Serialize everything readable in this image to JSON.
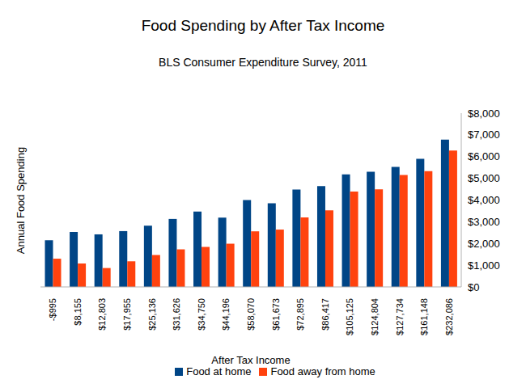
{
  "chart_data": {
    "type": "bar",
    "title": "Food Spending by After Tax Income",
    "subtitle": "BLS Consumer Expenditure Survey, 2011",
    "x_label": "After Tax Income",
    "y_label": "Annual Food Spending",
    "categories": [
      "-$995",
      "$8,155",
      "$12,803",
      "$17,955",
      "$25,136",
      "$31,626",
      "$34,750",
      "$44,196",
      "$58,070",
      "$61,673",
      "$72,895",
      "$86,417",
      "$105,125",
      "$124,804",
      "$127,734",
      "$161,148",
      "$232,086"
    ],
    "series": [
      {
        "name": "Food at home",
        "color": "#004586",
        "values": [
          2150,
          2530,
          2420,
          2570,
          2820,
          3130,
          3470,
          3190,
          4000,
          3850,
          4480,
          4640,
          5180,
          5300,
          5530,
          5900,
          6780
        ]
      },
      {
        "name": "Food away from home",
        "color": "#ff420e",
        "values": [
          1300,
          1080,
          870,
          1180,
          1470,
          1730,
          1840,
          1990,
          2560,
          2640,
          3200,
          3530,
          4390,
          4490,
          5150,
          5330,
          6280
        ]
      }
    ],
    "ylim": [
      0,
      8000
    ],
    "yticks": [
      {
        "value": 0,
        "label": "$0"
      },
      {
        "value": 1000,
        "label": "$1,000"
      },
      {
        "value": 2000,
        "label": "$2,000"
      },
      {
        "value": 3000,
        "label": "$3,000"
      },
      {
        "value": 4000,
        "label": "$4,000"
      },
      {
        "value": 5000,
        "label": "$5,000"
      },
      {
        "value": 6000,
        "label": "$6,000"
      },
      {
        "value": 7000,
        "label": "$7,000"
      },
      {
        "value": 8000,
        "label": "$8,000"
      }
    ],
    "grid": false,
    "legend": "bottom"
  }
}
